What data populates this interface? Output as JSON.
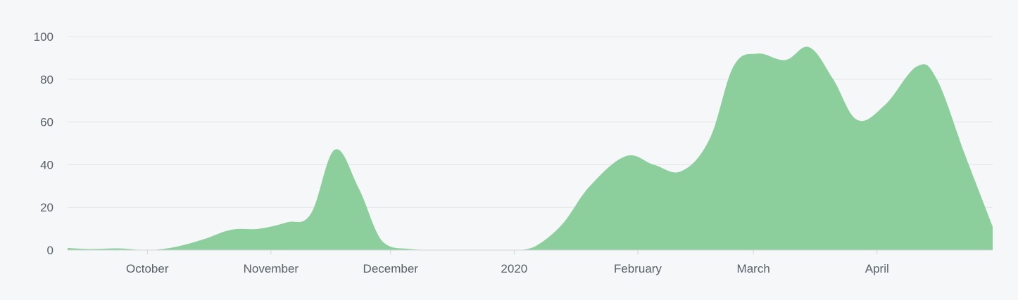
{
  "chart_data": {
    "type": "area",
    "title": "",
    "xlabel": "",
    "ylabel": "",
    "x_axis": "date",
    "xlim": [
      "2019-09-11",
      "2020-04-30"
    ],
    "ylim": [
      0,
      100
    ],
    "yticks": [
      0,
      20,
      40,
      60,
      80,
      100
    ],
    "xticks": [
      {
        "label": "October",
        "date": "2019-10-01"
      },
      {
        "label": "November",
        "date": "2019-11-01"
      },
      {
        "label": "December",
        "date": "2019-12-01"
      },
      {
        "label": "2020",
        "date": "2020-01-01"
      },
      {
        "label": "February",
        "date": "2020-02-01"
      },
      {
        "label": "March",
        "date": "2020-03-01"
      },
      {
        "label": "April",
        "date": "2020-04-01"
      }
    ],
    "grid": true,
    "legend": "none",
    "series": [
      {
        "color": "#8ccf9c",
        "points": [
          {
            "x": "2019-09-11",
            "y": 1
          },
          {
            "x": "2019-09-17",
            "y": 0.5
          },
          {
            "x": "2019-09-24",
            "y": 0.8
          },
          {
            "x": "2019-10-01",
            "y": 0
          },
          {
            "x": "2019-10-08",
            "y": 1.5
          },
          {
            "x": "2019-10-15",
            "y": 5
          },
          {
            "x": "2019-10-22",
            "y": 9.5
          },
          {
            "x": "2019-10-29",
            "y": 10
          },
          {
            "x": "2019-11-05",
            "y": 13
          },
          {
            "x": "2019-11-11",
            "y": 17
          },
          {
            "x": "2019-11-17",
            "y": 47
          },
          {
            "x": "2019-11-23",
            "y": 29
          },
          {
            "x": "2019-11-29",
            "y": 4
          },
          {
            "x": "2019-12-06",
            "y": 0.5
          },
          {
            "x": "2019-12-15",
            "y": 0
          },
          {
            "x": "2019-12-25",
            "y": 0
          },
          {
            "x": "2020-01-01",
            "y": 0
          },
          {
            "x": "2020-01-06",
            "y": 1.5
          },
          {
            "x": "2020-01-13",
            "y": 12
          },
          {
            "x": "2020-01-20",
            "y": 30
          },
          {
            "x": "2020-01-29",
            "y": 44
          },
          {
            "x": "2020-02-05",
            "y": 40
          },
          {
            "x": "2020-02-12",
            "y": 37
          },
          {
            "x": "2020-02-19",
            "y": 52
          },
          {
            "x": "2020-02-25",
            "y": 86
          },
          {
            "x": "2020-03-02",
            "y": 92
          },
          {
            "x": "2020-03-09",
            "y": 89
          },
          {
            "x": "2020-03-15",
            "y": 95
          },
          {
            "x": "2020-03-21",
            "y": 80
          },
          {
            "x": "2020-03-27",
            "y": 61
          },
          {
            "x": "2020-04-03",
            "y": 68
          },
          {
            "x": "2020-04-11",
            "y": 86
          },
          {
            "x": "2020-04-16",
            "y": 80
          },
          {
            "x": "2020-04-23",
            "y": 45
          },
          {
            "x": "2020-04-30",
            "y": 11
          }
        ]
      }
    ]
  }
}
